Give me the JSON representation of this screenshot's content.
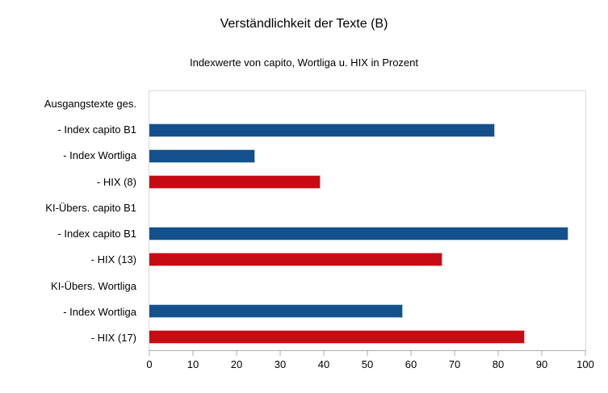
{
  "colors": {
    "blue": "#14508C",
    "blue_border": "#B5CDE6",
    "red": "#C60B13",
    "red_border": "#F0B2B5",
    "axis": "#ADADAD",
    "plot_border": "#D9D9D9"
  },
  "chart_data": {
    "type": "bar",
    "orientation": "horizontal",
    "title": "Verständlichkeit der Texte (B)",
    "subtitle": "Indexwerte von capito, Wortliga u. HIX in Prozent",
    "categories": [
      "Ausgangstexte ges.",
      "- Index capito B1",
      "- Index Wortliga",
      "- HIX (8)",
      "KI-Übers. capito B1",
      "- Index capito B1",
      "- HIX (13)",
      "KI-Übers. Wortliga",
      "- Index Wortliga",
      "- HIX (17)"
    ],
    "values": [
      null,
      79,
      24,
      39,
      null,
      96,
      67,
      null,
      58,
      86
    ],
    "bar_colors": [
      "none",
      "blue",
      "blue",
      "red",
      "none",
      "blue",
      "red",
      "none",
      "blue",
      "red"
    ],
    "xlim": [
      0,
      100
    ],
    "xticks": [
      0,
      10,
      20,
      30,
      40,
      50,
      60,
      70,
      80,
      90,
      100
    ],
    "grid": false,
    "legend": false
  }
}
